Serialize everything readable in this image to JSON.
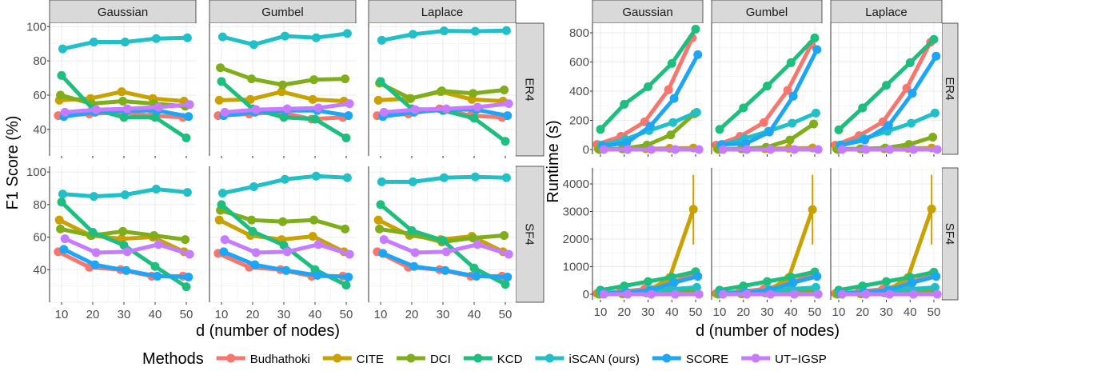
{
  "legend": {
    "title": "Methods",
    "position": "bottom",
    "items": [
      {
        "name": "Budhathoki",
        "color": "#F8766D"
      },
      {
        "name": "CITE",
        "color": "#C9A100"
      },
      {
        "name": "DCI",
        "color": "#7FAE1A"
      },
      {
        "name": "KCD",
        "color": "#1DBE7E"
      },
      {
        "name": "iSCAN (ours)",
        "color": "#21BFC8"
      },
      {
        "name": "SCORE",
        "color": "#1CA6F5"
      },
      {
        "name": "UT−IGSP",
        "color": "#C77CFF"
      }
    ]
  },
  "chart_data": [
    {
      "type": "line",
      "ylabel": "F1 Score (%)",
      "xlabel": "d (number of nodes)",
      "x": [
        10,
        20,
        30,
        40,
        50
      ],
      "xticks": [
        "10",
        "20",
        "30",
        "40",
        "50"
      ],
      "grid": true,
      "columns": [
        "Gaussian",
        "Gumbel",
        "Laplace"
      ],
      "rows": [
        {
          "label": "ER4",
          "ylim": [
            24.5,
            102
          ],
          "yticks": [
            "40",
            "60",
            "80",
            "100"
          ],
          "yvals": [
            40,
            60,
            80,
            100
          ],
          "panels": [
            {
              "series": {
                "Budhathoki": [
                  48,
                  49,
                  50,
                  48,
                  47
                ],
                "CITE": [
                  57,
                  58,
                  62,
                  58,
                  56.5
                ],
                "DCI": [
                  60,
                  55,
                  56.5,
                  55,
                  53.5
                ],
                "KCD": [
                  71.5,
                  52,
                  47,
                  47,
                  35
                ],
                "iSCAN (ours)": [
                  87,
                  91,
                  91,
                  93,
                  93.5
                ],
                "SCORE": [
                  47.5,
                  50,
                  51,
                  51,
                  47.5
                ],
                "UT−IGSP": [
                  50,
                  51.5,
                  52,
                  53,
                  54.5
                ]
              }
            },
            {
              "series": {
                "Budhathoki": [
                  48,
                  49,
                  50,
                  46,
                  47
                ],
                "CITE": [
                  57,
                  57.5,
                  62,
                  57.5,
                  56.5
                ],
                "DCI": [
                  76,
                  69.5,
                  66,
                  69,
                  69.5
                ],
                "KCD": [
                  68,
                  52,
                  47,
                  46,
                  35
                ],
                "iSCAN (ours)": [
                  94,
                  89.5,
                  94.5,
                  93.5,
                  96
                ],
                "SCORE": [
                  48,
                  50,
                  51,
                  51,
                  48
                ],
                "UT−IGSP": [
                  50,
                  51.5,
                  52,
                  52.5,
                  55
                ]
              }
            },
            {
              "series": {
                "Budhathoki": [
                  48,
                  49,
                  52,
                  48,
                  47
                ],
                "CITE": [
                  57,
                  58,
                  62,
                  57.5,
                  56.5
                ],
                "DCI": [
                  67,
                  58,
                  62.5,
                  61,
                  63
                ],
                "KCD": [
                  68,
                  52,
                  51,
                  46.5,
                  33
                ],
                "iSCAN (ours)": [
                  92,
                  95.5,
                  97.5,
                  97.3,
                  97.7
                ],
                "SCORE": [
                  47.5,
                  50,
                  51.5,
                  51.5,
                  48
                ],
                "UT−IGSP": [
                  50,
                  51.5,
                  52,
                  53,
                  55
                ]
              }
            }
          ]
        },
        {
          "label": "SF4",
          "ylim": [
            20,
            103.5
          ],
          "yticks": [
            "40",
            "60",
            "80",
            "100"
          ],
          "yvals": [
            40,
            60,
            80,
            100
          ],
          "panels": [
            {
              "series": {
                "Budhathoki": [
                  51,
                  41.5,
                  40,
                  36,
                  36
                ],
                "CITE": [
                  70.5,
                  61,
                  59,
                  60,
                  51
                ],
                "DCI": [
                  65,
                  61,
                  63.5,
                  61,
                  58.5
                ],
                "KCD": [
                  81.5,
                  63,
                  55,
                  42,
                  29.5
                ],
                "iSCAN (ours)": [
                  86.5,
                  85,
                  86,
                  89.5,
                  87.5
                ],
                "SCORE": [
                  52.5,
                  43,
                  39.5,
                  36,
                  35.5
                ],
                "UT−IGSP": [
                  59,
                  50.5,
                  51,
                  55.5,
                  49.5
                ]
              }
            },
            {
              "series": {
                "Budhathoki": [
                  50,
                  41.5,
                  40,
                  36,
                  36
                ],
                "CITE": [
                  70.5,
                  61,
                  58.5,
                  60.5,
                  51
                ],
                "DCI": [
                  76.5,
                  70.5,
                  69.5,
                  70.5,
                  65
                ],
                "KCD": [
                  80,
                  63.5,
                  55,
                  40,
                  30.5
                ],
                "iSCAN (ours)": [
                  87,
                  91,
                  95.5,
                  97.5,
                  96.5
                ],
                "SCORE": [
                  51,
                  43,
                  39.5,
                  36.5,
                  35.5
                ],
                "UT−IGSP": [
                  58.5,
                  50.5,
                  51,
                  55.5,
                  49.5
                ]
              }
            },
            {
              "series": {
                "Budhathoki": [
                  51,
                  41.5,
                  40,
                  36,
                  36
                ],
                "CITE": [
                  70.5,
                  61,
                  58.5,
                  60.5,
                  51
                ],
                "DCI": [
                  65,
                  62,
                  57,
                  59.5,
                  61
                ],
                "KCD": [
                  80,
                  64,
                  58,
                  41,
                  31
                ],
                "iSCAN (ours)": [
                  94,
                  94,
                  96.5,
                  97,
                  96.5
                ],
                "SCORE": [
                  50,
                  42,
                  39.5,
                  36,
                  35.5
                ],
                "UT−IGSP": [
                  58.5,
                  50.5,
                  51,
                  55.5,
                  49.5
                ]
              }
            }
          ]
        }
      ]
    },
    {
      "type": "line",
      "ylabel": "Runtime (s)",
      "xlabel": "d (number of nodes)",
      "x": [
        10,
        20,
        30,
        40,
        50
      ],
      "xticks": [
        "10",
        "20",
        "30",
        "40",
        "50"
      ],
      "grid": true,
      "columns": [
        "Gaussian",
        "Gumbel",
        "Laplace"
      ],
      "rows": [
        {
          "label": "ER4",
          "ylim": [
            -33,
            866
          ],
          "yticks": [
            "0",
            "200",
            "400",
            "600",
            "800"
          ],
          "yvals": [
            0,
            200,
            400,
            600,
            800
          ],
          "panels": [
            {
              "series": {
                "Budhathoki": [
                  35,
                  90,
                  190,
                  410,
                  765
                ],
                "CITE": [
                  5,
                  5,
                  5,
                  8,
                  10
                ],
                "DCI": [
                  0,
                  5,
                  30,
                  100,
                  245
                ],
                "KCD": [
                  138,
                  310,
                  430,
                  590,
                  825
                ],
                "iSCAN (ours)": [
                  30,
                  70,
                  130,
                  185,
                  255
                ],
                "SCORE": [
                  25,
                  45,
                  160,
                  350,
                  650
                ],
                "UT−IGSP": [
                  0,
                  0,
                  0,
                  0,
                  0
                ]
              }
            },
            {
              "series": {
                "Budhathoki": [
                  30,
                  90,
                  185,
                  405,
                  720
                ],
                "CITE": [
                  5,
                  5,
                  5,
                  8,
                  10
                ],
                "DCI": [
                  0,
                  5,
                  15,
                  65,
                  175
                ],
                "KCD": [
                  138,
                  285,
                  435,
                  595,
                  765
                ],
                "iSCAN (ours)": [
                  30,
                  75,
                  125,
                  180,
                  250
                ],
                "SCORE": [
                  35,
                  40,
                  120,
                  365,
                  685
                ],
                "UT−IGSP": [
                  0,
                  0,
                  0,
                  0,
                  0
                ]
              }
            },
            {
              "series": {
                "Budhathoki": [
                  30,
                  95,
                  190,
                  420,
                  735
                ],
                "CITE": [
                  5,
                  5,
                  5,
                  8,
                  10
                ],
                "DCI": [
                  0,
                  5,
                  10,
                  35,
                  85
                ],
                "KCD": [
                  135,
                  285,
                  440,
                  595,
                  755
                ],
                "iSCAN (ours)": [
                  30,
                  75,
                  125,
                  180,
                  250
                ],
                "SCORE": [
                  30,
                  65,
                  165,
                  385,
                  640
                ],
                "UT−IGSP": [
                  0,
                  0,
                  0,
                  0,
                  0
                ]
              }
            }
          ]
        },
        {
          "label": "SF4",
          "ylim": [
            -203,
            4580
          ],
          "yticks": [
            "0",
            "1000",
            "2000",
            "3000",
            "4000"
          ],
          "yvals": [
            0,
            1000,
            2000,
            3000,
            4000
          ],
          "panels": [
            {
              "series": {
                "Budhathoki": [
                  30,
                  90,
                  190,
                  380,
                  700
                ],
                "CITE": [
                  10,
                  20,
                  50,
                  600,
                  3080
                ],
                "DCI": [
                  0,
                  20,
                  60,
                  130,
                  100
                ],
                "KCD": [
                  150,
                  300,
                  460,
                  620,
                  820
                ],
                "iSCAN (ours)": [
                  30,
                  70,
                  130,
                  190,
                  250
                ],
                "SCORE": [
                  30,
                  60,
                  150,
                  420,
                  650
                ],
                "UT−IGSP": [
                  0,
                  0,
                  0,
                  0,
                  0
                ]
              },
              "errorbars": [
                {
                  "series": "CITE",
                  "x": 50,
                  "low": 1800,
                  "high": 4330
                }
              ]
            },
            {
              "series": {
                "Budhathoki": [
                  30,
                  90,
                  190,
                  380,
                  700
                ],
                "CITE": [
                  10,
                  20,
                  50,
                  600,
                  3070
                ],
                "DCI": [
                  0,
                  20,
                  60,
                  130,
                  100
                ],
                "KCD": [
                  150,
                  300,
                  460,
                  620,
                  810
                ],
                "iSCAN (ours)": [
                  30,
                  70,
                  130,
                  190,
                  250
                ],
                "SCORE": [
                  30,
                  60,
                  150,
                  420,
                  650
                ],
                "UT−IGSP": [
                  0,
                  0,
                  0,
                  0,
                  0
                ]
              },
              "errorbars": [
                {
                  "series": "CITE",
                  "x": 50,
                  "low": 1800,
                  "high": 4330
                }
              ]
            },
            {
              "series": {
                "Budhathoki": [
                  30,
                  90,
                  190,
                  380,
                  700
                ],
                "CITE": [
                  10,
                  20,
                  50,
                  600,
                  3090
                ],
                "DCI": [
                  0,
                  20,
                  60,
                  130,
                  100
                ],
                "KCD": [
                  150,
                  300,
                  460,
                  620,
                  800
                ],
                "iSCAN (ours)": [
                  30,
                  70,
                  130,
                  190,
                  250
                ],
                "SCORE": [
                  30,
                  60,
                  150,
                  420,
                  650
                ],
                "UT−IGSP": [
                  0,
                  0,
                  0,
                  0,
                  0
                ]
              },
              "errorbars": [
                {
                  "series": "CITE",
                  "x": 50,
                  "low": 1800,
                  "high": 4330
                }
              ]
            }
          ]
        }
      ]
    }
  ]
}
